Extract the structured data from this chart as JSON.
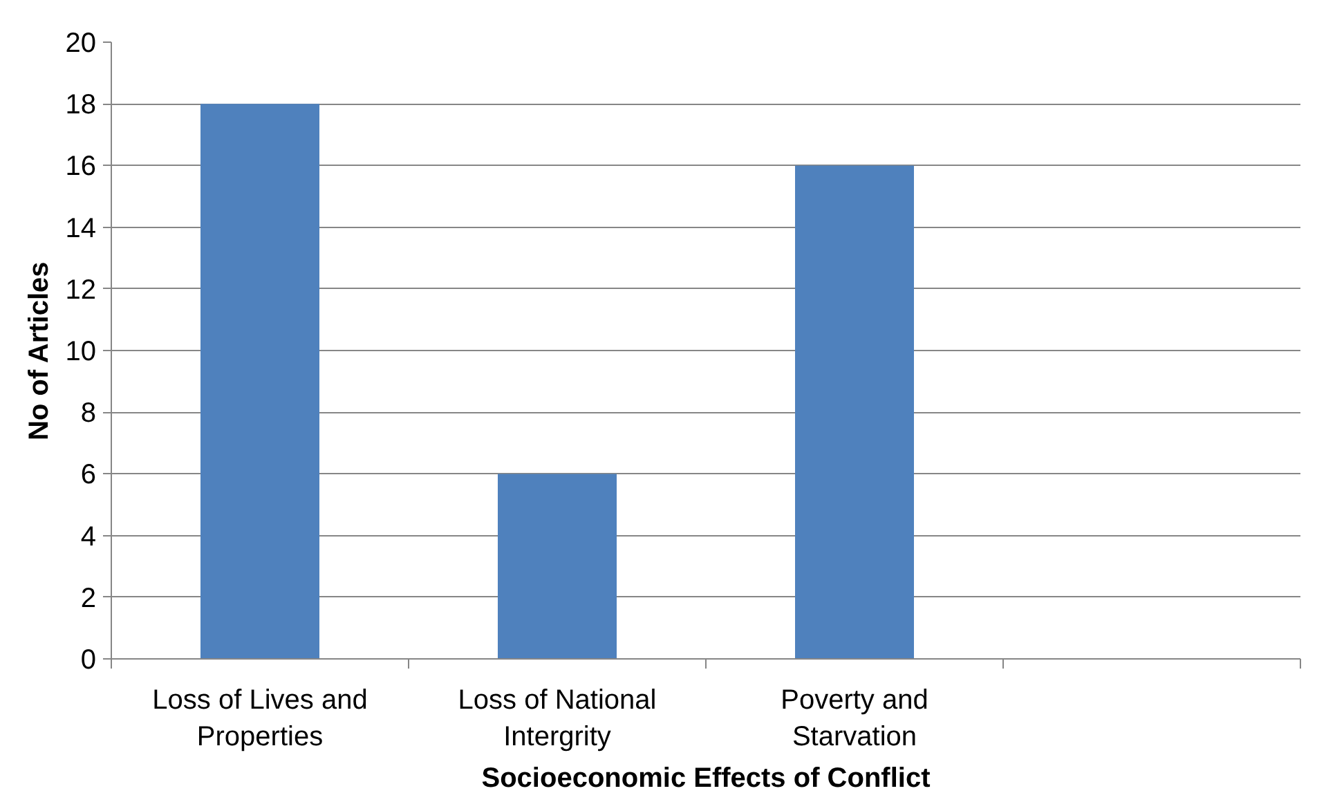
{
  "chart_data": {
    "type": "bar",
    "xlabel": "Socioeconomic Effects of Conflict",
    "ylabel": "No of Articles",
    "categories": [
      "Loss of Lives and Properties",
      "Loss of National Intergrity",
      "Poverty and Starvation",
      null
    ],
    "values": [
      18,
      6,
      16,
      null
    ],
    "color": "#4f81bd",
    "ylim": [
      0,
      20
    ],
    "yticks": [
      0,
      2,
      4,
      6,
      8,
      10,
      12,
      14,
      16,
      18,
      20
    ],
    "grid": "y"
  }
}
